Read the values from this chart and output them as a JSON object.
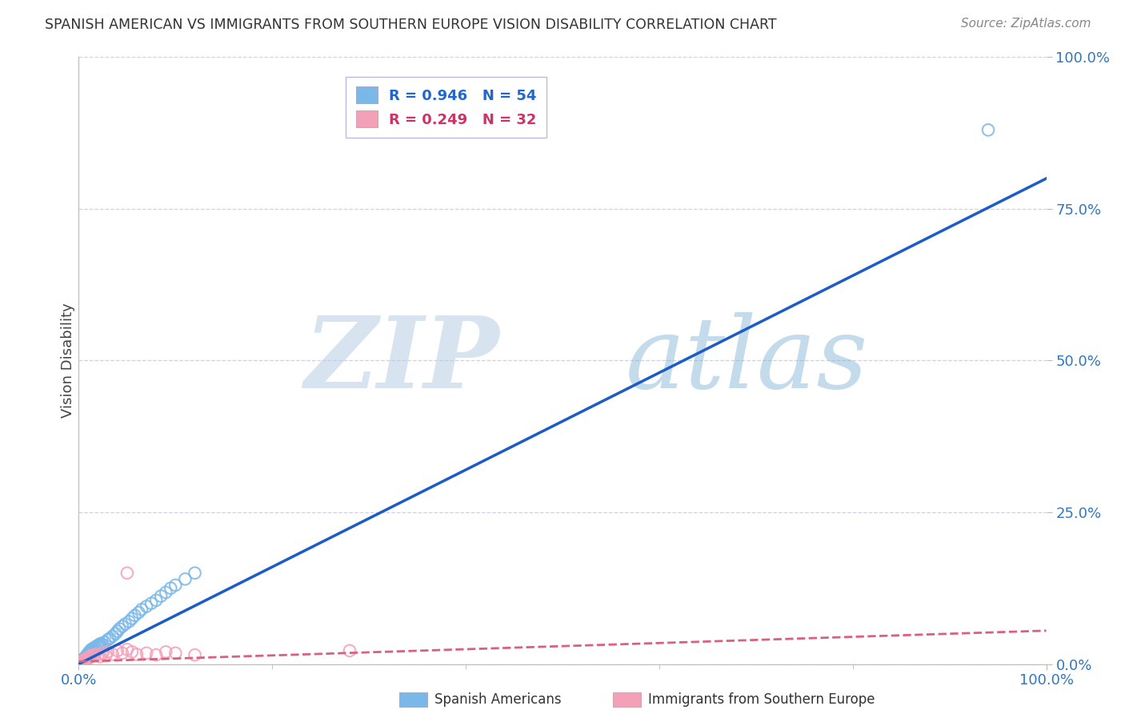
{
  "title": "SPANISH AMERICAN VS IMMIGRANTS FROM SOUTHERN EUROPE VISION DISABILITY CORRELATION CHART",
  "source": "Source: ZipAtlas.com",
  "ylabel": "Vision Disability",
  "xlim": [
    0,
    1.0
  ],
  "ylim": [
    0,
    1.0
  ],
  "xtick_positions": [
    0.0,
    1.0
  ],
  "xtick_labels": [
    "0.0%",
    "100.0%"
  ],
  "ytick_values": [
    0.0,
    0.25,
    0.5,
    0.75,
    1.0
  ],
  "ytick_labels": [
    "0.0%",
    "25.0%",
    "50.0%",
    "75.0%",
    "100.0%"
  ],
  "blue_R": "R = 0.946",
  "blue_N": "N = 54",
  "pink_R": "R = 0.249",
  "pink_N": "N = 32",
  "legend_label_blue": "Spanish Americans",
  "legend_label_pink": "Immigrants from Southern Europe",
  "blue_color": "#7ab8e8",
  "pink_color": "#f4a0b8",
  "blue_line_color": "#1a5cc8",
  "pink_line_color": "#d86080",
  "watermark_zip": "ZIP",
  "watermark_atlas": "atlas",
  "background_color": "#ffffff",
  "grid_color": "#d0d0e0",
  "blue_line_x": [
    0.0,
    1.0
  ],
  "blue_line_y": [
    0.0,
    0.8
  ],
  "pink_line_x": [
    0.0,
    1.0
  ],
  "pink_line_y": [
    0.004,
    0.055
  ],
  "blue_x": [
    0.002,
    0.003,
    0.004,
    0.005,
    0.006,
    0.006,
    0.007,
    0.007,
    0.008,
    0.008,
    0.009,
    0.009,
    0.01,
    0.01,
    0.011,
    0.011,
    0.012,
    0.012,
    0.013,
    0.014,
    0.015,
    0.016,
    0.017,
    0.018,
    0.019,
    0.02,
    0.021,
    0.022,
    0.023,
    0.025,
    0.027,
    0.03,
    0.032,
    0.035,
    0.038,
    0.04,
    0.042,
    0.045,
    0.048,
    0.052,
    0.055,
    0.058,
    0.062,
    0.065,
    0.07,
    0.075,
    0.08,
    0.085,
    0.09,
    0.095,
    0.1,
    0.11,
    0.12,
    0.94
  ],
  "blue_y": [
    0.003,
    0.006,
    0.005,
    0.008,
    0.01,
    0.007,
    0.012,
    0.009,
    0.014,
    0.011,
    0.016,
    0.013,
    0.018,
    0.015,
    0.02,
    0.017,
    0.022,
    0.019,
    0.024,
    0.021,
    0.026,
    0.023,
    0.028,
    0.025,
    0.03,
    0.027,
    0.032,
    0.03,
    0.034,
    0.032,
    0.036,
    0.04,
    0.042,
    0.046,
    0.05,
    0.054,
    0.058,
    0.062,
    0.066,
    0.07,
    0.075,
    0.08,
    0.085,
    0.09,
    0.095,
    0.1,
    0.105,
    0.112,
    0.118,
    0.125,
    0.13,
    0.14,
    0.15,
    0.88
  ],
  "pink_x": [
    0.002,
    0.003,
    0.004,
    0.005,
    0.006,
    0.007,
    0.008,
    0.009,
    0.01,
    0.011,
    0.012,
    0.013,
    0.015,
    0.017,
    0.02,
    0.022,
    0.025,
    0.028,
    0.03,
    0.035,
    0.04,
    0.045,
    0.05,
    0.055,
    0.06,
    0.07,
    0.08,
    0.09,
    0.1,
    0.12,
    0.28,
    0.05
  ],
  "pink_y": [
    0.002,
    0.004,
    0.003,
    0.006,
    0.005,
    0.008,
    0.007,
    0.01,
    0.009,
    0.012,
    0.011,
    0.014,
    0.013,
    0.016,
    0.015,
    0.012,
    0.018,
    0.014,
    0.02,
    0.016,
    0.022,
    0.018,
    0.024,
    0.02,
    0.016,
    0.018,
    0.015,
    0.02,
    0.018,
    0.015,
    0.022,
    0.15
  ]
}
